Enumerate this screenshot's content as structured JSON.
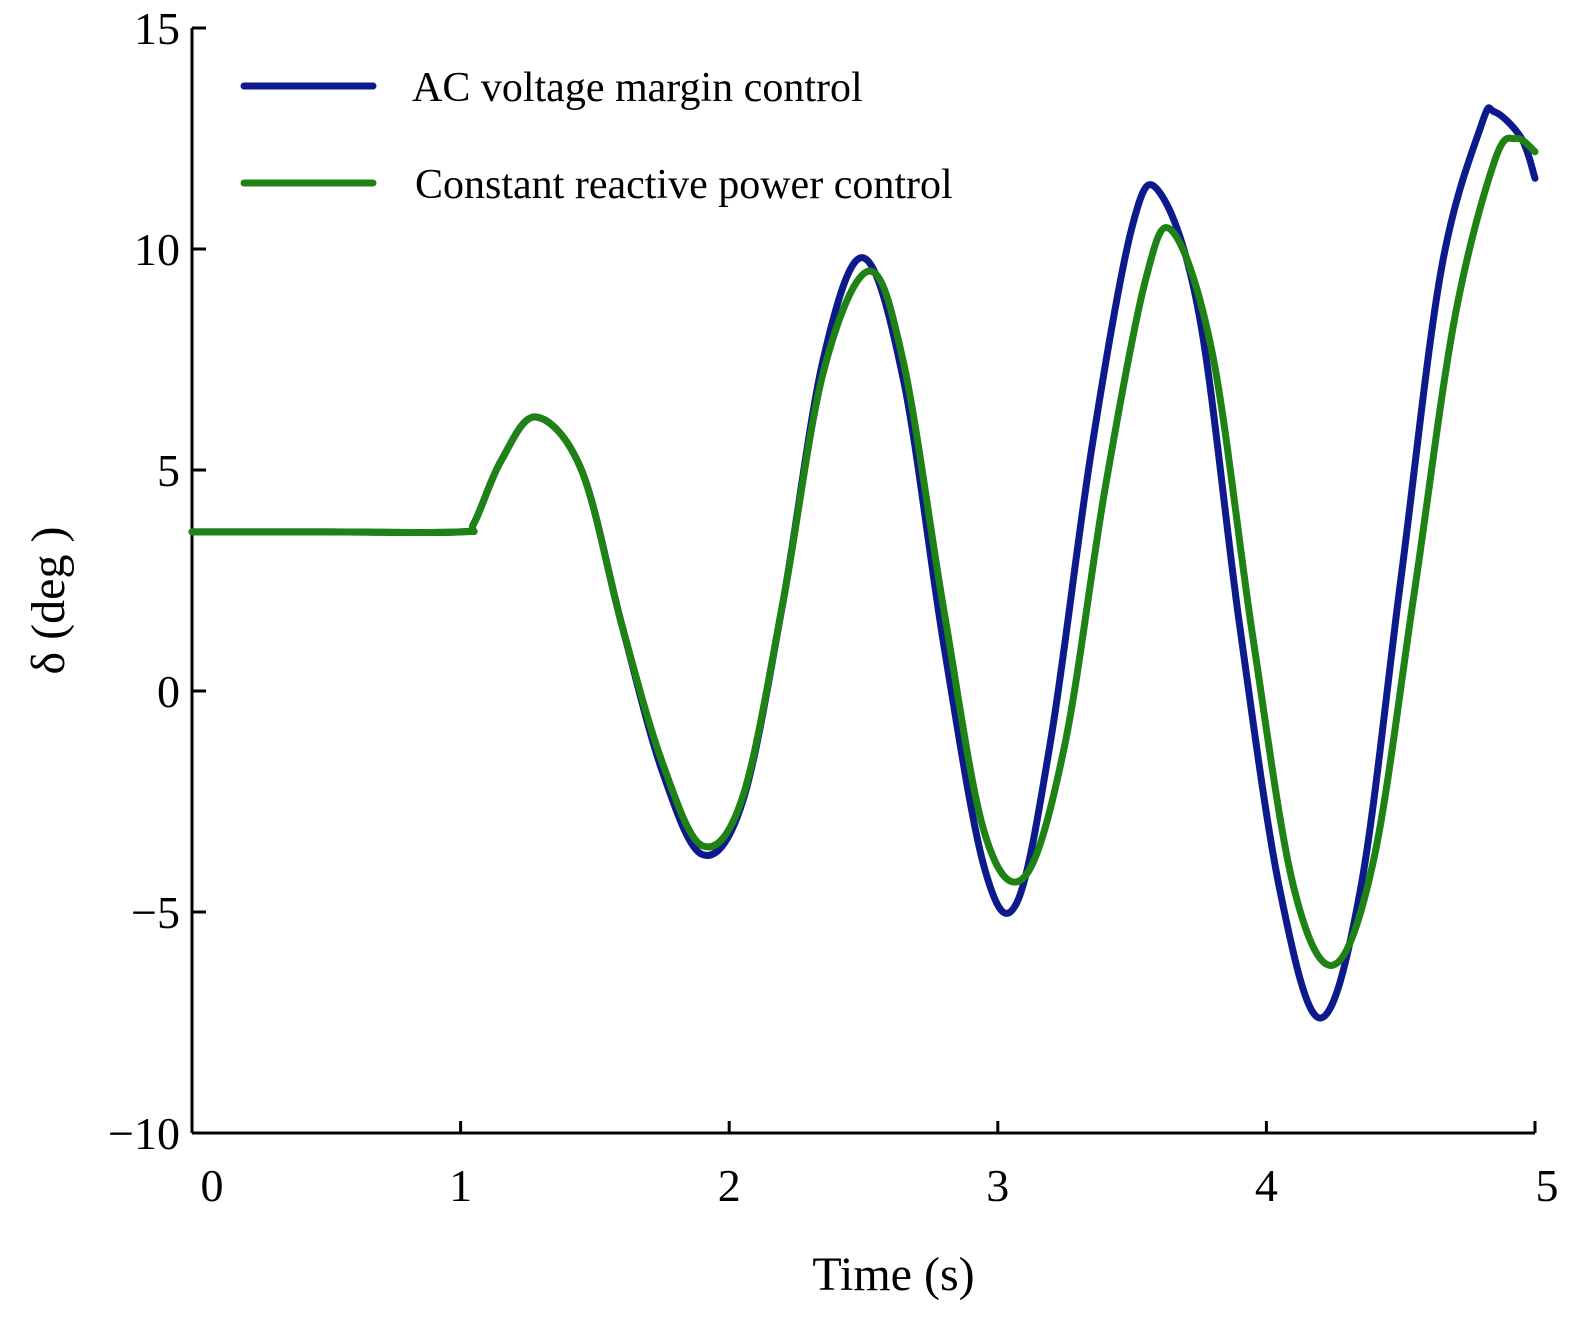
{
  "chart_data": {
    "type": "line",
    "xlabel": "Time (s)",
    "ylabel": "δ (deg )",
    "xlim": [
      0,
      5
    ],
    "ylim": [
      -10,
      15
    ],
    "xticks": [
      0,
      1,
      2,
      3,
      4,
      5
    ],
    "yticks": [
      -10,
      -5,
      0,
      5,
      10,
      15
    ],
    "xtick_labels": [
      "0",
      "1",
      "2",
      "3",
      "4",
      "5"
    ],
    "ytick_labels": [
      "−10",
      "−5",
      "0",
      "5",
      "10",
      "15"
    ],
    "grid": false,
    "legend_position": "top-left",
    "series": [
      {
        "name": "AC voltage margin control",
        "color": "#0d1a8c",
        "x": [
          0,
          0.5,
          1.0,
          1.05,
          1.15,
          1.28,
          1.45,
          1.6,
          1.75,
          1.9,
          2.05,
          2.2,
          2.35,
          2.5,
          2.65,
          2.8,
          2.95,
          3.07,
          3.2,
          3.35,
          3.5,
          3.6,
          3.75,
          3.9,
          4.05,
          4.2,
          4.35,
          4.5,
          4.65,
          4.8,
          4.85,
          4.95,
          5.0
        ],
        "y": [
          3.6,
          3.6,
          3.6,
          3.8,
          5.2,
          6.2,
          5.0,
          1.5,
          -1.8,
          -3.7,
          -2.5,
          2.0,
          7.5,
          9.8,
          7.0,
          1.0,
          -4.0,
          -4.8,
          -1.0,
          5.5,
          10.5,
          11.3,
          8.5,
          1.5,
          -4.5,
          -7.4,
          -4.5,
          2.5,
          9.5,
          12.8,
          13.1,
          12.5,
          11.6
        ]
      },
      {
        "name": "Constant reactive power control",
        "color": "#1e8214",
        "x": [
          0,
          0.5,
          1.0,
          1.05,
          1.15,
          1.28,
          1.45,
          1.6,
          1.75,
          1.9,
          2.05,
          2.2,
          2.35,
          2.52,
          2.65,
          2.8,
          2.95,
          3.1,
          3.25,
          3.4,
          3.55,
          3.65,
          3.8,
          3.95,
          4.1,
          4.25,
          4.4,
          4.55,
          4.7,
          4.85,
          4.93,
          5.0
        ],
        "y": [
          3.6,
          3.6,
          3.6,
          3.8,
          5.2,
          6.2,
          5.0,
          1.5,
          -1.6,
          -3.5,
          -2.4,
          2.0,
          7.2,
          9.5,
          7.4,
          1.8,
          -3.2,
          -4.2,
          -1.2,
          4.6,
          9.3,
          10.4,
          7.6,
          1.2,
          -4.4,
          -6.2,
          -3.8,
          2.2,
          8.4,
          12.0,
          12.5,
          12.2
        ]
      }
    ]
  }
}
